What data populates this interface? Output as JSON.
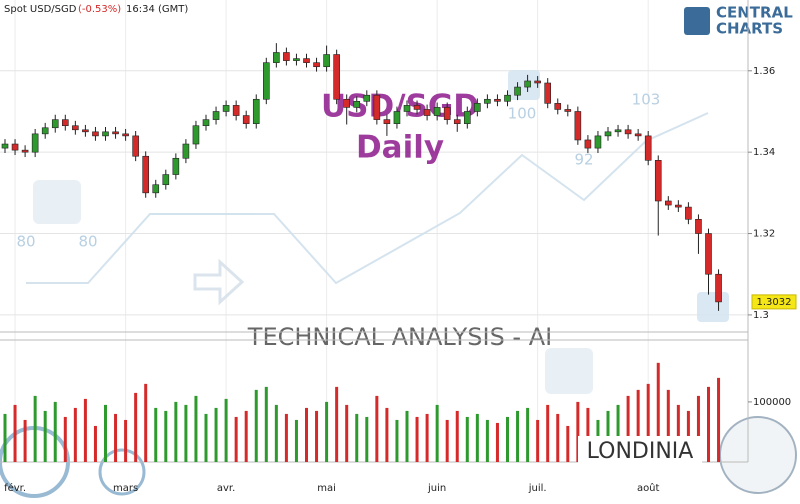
{
  "header": {
    "symbol": "Spot USD/SGD",
    "change": "(-0.53%)",
    "time": "16:34 (GMT)"
  },
  "logo": {
    "line1": "CENTRAL",
    "line2": "CHARTS"
  },
  "watermark": {
    "technical": "TECHNICAL  ANALYSIS - AI",
    "brand": "LONDINIA",
    "numbers": [
      80,
      80,
      100,
      92,
      103
    ]
  },
  "chart_data": [
    {
      "type": "candlestick",
      "title": "USD/SGD",
      "subtitle": "Daily",
      "up_color": "#2e9a2e",
      "down_color": "#d42a2a",
      "open": [
        1.341,
        1.342,
        1.3405,
        1.34,
        1.3445,
        1.346,
        1.348,
        1.3465,
        1.3455,
        1.345,
        1.344,
        1.345,
        1.3445,
        1.344,
        1.339,
        1.33,
        1.332,
        1.3345,
        1.3385,
        1.342,
        1.3465,
        1.348,
        1.35,
        1.3515,
        1.349,
        1.347,
        1.353,
        1.362,
        1.3645,
        1.3625,
        1.363,
        1.362,
        1.361,
        1.364,
        1.353,
        1.351,
        1.3525,
        1.354,
        1.348,
        1.347,
        1.35,
        1.3515,
        1.3505,
        1.349,
        1.351,
        1.348,
        1.347,
        1.35,
        1.352,
        1.353,
        1.3525,
        1.354,
        1.356,
        1.3575,
        1.357,
        1.352,
        1.3505,
        1.35,
        1.343,
        1.341,
        1.344,
        1.345,
        1.3455,
        1.3445,
        1.344,
        1.338,
        1.328,
        1.327,
        1.3265,
        1.3235,
        1.32,
        1.31
      ],
      "high": [
        1.3432,
        1.3432,
        1.3417,
        1.3457,
        1.3472,
        1.3492,
        1.3492,
        1.3477,
        1.3467,
        1.3462,
        1.3462,
        1.3462,
        1.3457,
        1.3452,
        1.3402,
        1.3332,
        1.3357,
        1.3397,
        1.3432,
        1.3477,
        1.3492,
        1.3512,
        1.3527,
        1.3527,
        1.3502,
        1.3542,
        1.3632,
        1.3668,
        1.3657,
        1.3642,
        1.3642,
        1.3632,
        1.3662,
        1.3652,
        1.3542,
        1.3537,
        1.3552,
        1.3552,
        1.3492,
        1.3512,
        1.3527,
        1.3527,
        1.3517,
        1.3522,
        1.3522,
        1.3492,
        1.3512,
        1.3532,
        1.3542,
        1.3542,
        1.3552,
        1.3572,
        1.359,
        1.3587,
        1.3582,
        1.3532,
        1.3517,
        1.3512,
        1.3442,
        1.3452,
        1.3462,
        1.3467,
        1.3467,
        1.3457,
        1.3452,
        1.3392,
        1.3292,
        1.3282,
        1.3277,
        1.3247,
        1.3212,
        1.3112
      ],
      "low": [
        1.3398,
        1.3393,
        1.3388,
        1.3388,
        1.3433,
        1.3448,
        1.3453,
        1.3443,
        1.3438,
        1.3428,
        1.3428,
        1.3433,
        1.3428,
        1.3378,
        1.3288,
        1.3288,
        1.3308,
        1.3333,
        1.3373,
        1.3408,
        1.3453,
        1.3468,
        1.3488,
        1.3478,
        1.3458,
        1.3458,
        1.3518,
        1.3608,
        1.3613,
        1.3613,
        1.3608,
        1.3598,
        1.3598,
        1.3518,
        1.3468,
        1.3498,
        1.3513,
        1.3468,
        1.344,
        1.3458,
        1.3488,
        1.3493,
        1.3478,
        1.3478,
        1.3468,
        1.345,
        1.3458,
        1.3488,
        1.3508,
        1.3513,
        1.3513,
        1.3528,
        1.3548,
        1.3558,
        1.3508,
        1.3493,
        1.3488,
        1.3418,
        1.3398,
        1.3398,
        1.3428,
        1.3438,
        1.3433,
        1.3428,
        1.3368,
        1.3195,
        1.3258,
        1.3253,
        1.3223,
        1.315,
        1.305,
        1.301
      ],
      "close": [
        1.342,
        1.3405,
        1.34,
        1.3445,
        1.346,
        1.348,
        1.3465,
        1.3455,
        1.345,
        1.344,
        1.345,
        1.3445,
        1.344,
        1.339,
        1.33,
        1.332,
        1.3345,
        1.3385,
        1.342,
        1.3465,
        1.348,
        1.35,
        1.3515,
        1.349,
        1.347,
        1.353,
        1.362,
        1.3645,
        1.3625,
        1.363,
        1.362,
        1.361,
        1.364,
        1.353,
        1.351,
        1.3525,
        1.354,
        1.348,
        1.347,
        1.35,
        1.3515,
        1.3505,
        1.349,
        1.351,
        1.348,
        1.347,
        1.35,
        1.352,
        1.353,
        1.3525,
        1.354,
        1.356,
        1.3575,
        1.357,
        1.352,
        1.3505,
        1.35,
        1.343,
        1.341,
        1.344,
        1.345,
        1.3455,
        1.3445,
        1.344,
        1.338,
        1.328,
        1.327,
        1.3265,
        1.3235,
        1.32,
        1.31,
        1.3032
      ],
      "ylim": [
        1.2958,
        1.3774
      ],
      "yticks": [
        1.3,
        1.32,
        1.34,
        1.36
      ],
      "grid": true
    },
    {
      "type": "bar",
      "up_color": "#2e9a2e",
      "down_color": "#d42a2a",
      "categories": [
        null,
        "févr.",
        null,
        null,
        null,
        null,
        null,
        null,
        null,
        null,
        null,
        null,
        "mars",
        null,
        null,
        null,
        null,
        null,
        null,
        null,
        null,
        null,
        "avr.",
        null,
        null,
        null,
        null,
        null,
        null,
        null,
        null,
        null,
        "mai",
        null,
        null,
        null,
        null,
        null,
        null,
        null,
        null,
        null,
        null,
        "juin",
        null,
        null,
        null,
        null,
        null,
        null,
        null,
        null,
        null,
        "juil.",
        null,
        null,
        null,
        null,
        null,
        null,
        null,
        null,
        null,
        null,
        "août",
        null,
        null,
        null,
        null,
        null,
        null,
        null
      ],
      "values": [
        80000,
        95000,
        70000,
        110000,
        85000,
        100000,
        75000,
        90000,
        105000,
        60000,
        95000,
        80000,
        70000,
        115000,
        130000,
        90000,
        85000,
        100000,
        95000,
        110000,
        80000,
        90000,
        105000,
        75000,
        85000,
        120000,
        125000,
        95000,
        80000,
        70000,
        90000,
        85000,
        100000,
        125000,
        95000,
        80000,
        75000,
        110000,
        90000,
        70000,
        85000,
        75000,
        80000,
        95000,
        70000,
        85000,
        75000,
        80000,
        70000,
        65000,
        75000,
        85000,
        90000,
        70000,
        95000,
        80000,
        60000,
        100000,
        90000,
        70000,
        85000,
        95000,
        110000,
        120000,
        130000,
        165000,
        120000,
        95000,
        85000,
        110000,
        125000,
        140000
      ],
      "ylim": [
        0,
        203000
      ],
      "yticks": [
        100000
      ]
    }
  ]
}
